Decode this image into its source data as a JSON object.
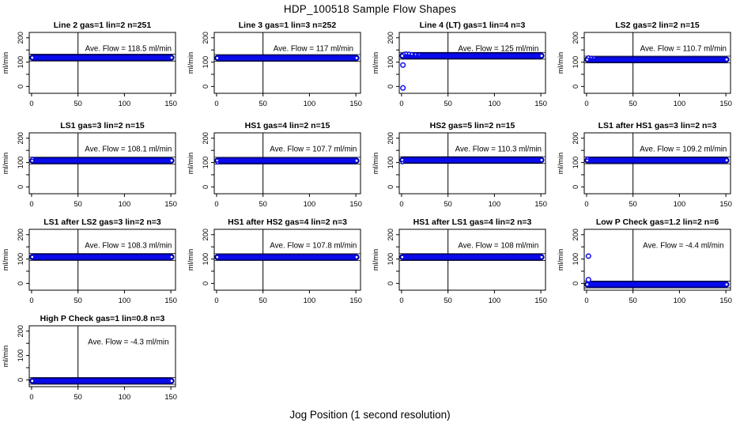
{
  "page": {
    "title": "HDP_100518  Sample Flow Shapes",
    "xlabel": "Jog Position (1 second resolution)",
    "ylabel": "ml/min"
  },
  "chart_data": {
    "type": "scatter",
    "title": "HDP_100518  Sample Flow Shapes",
    "xlabel": "Jog Position (1 second resolution)",
    "ylabel": "ml/min",
    "layout_hints": {
      "grid_rows": 4,
      "grid_cols": 4,
      "grid_on": false,
      "legend": "none",
      "vertical_reference_line_x": 50,
      "tolerance_line_offset_mlmin": 14
    },
    "xlim": [
      -2.5,
      155
    ],
    "ylim": [
      -28,
      222
    ],
    "x_ticks": [
      0,
      50,
      100,
      150
    ],
    "y_ticks": [
      0,
      50,
      100,
      150,
      200
    ],
    "y_tick_labels": [
      0,
      100,
      200
    ],
    "point_color": "#0a0aee",
    "point_edge_color": "#000088",
    "subplots": [
      {
        "row": 0,
        "col": 0,
        "title": "Line 2 gas=1 lin=2 n=251",
        "gas": 1,
        "lin": 2,
        "n": 251,
        "ave_flow": 118.5,
        "annotation": "Ave. Flow =  118.5  ml/min",
        "band": {
          "x0": 0,
          "x1": 151.5,
          "center": 118.5,
          "half": 11
        },
        "outliers": []
      },
      {
        "row": 0,
        "col": 1,
        "title": "Line 3 gas=1 lin=3 n=252",
        "gas": 1,
        "lin": 3,
        "n": 252,
        "ave_flow": 117,
        "annotation": "Ave. Flow =  117  ml/min",
        "band": {
          "x0": 0,
          "x1": 151.5,
          "center": 117,
          "half": 11
        },
        "outliers": []
      },
      {
        "row": 0,
        "col": 2,
        "title": "Line 4 (LT) gas=1 lin=4 n=3",
        "gas": 1,
        "lin": 4,
        "n": 3,
        "ave_flow": 125,
        "annotation": "Ave. Flow =  125  ml/min",
        "band": {
          "x0": 0,
          "x1": 151.5,
          "center": 126,
          "half": 11
        },
        "outliers": [
          [
            1.5,
            -6,
            2.8
          ],
          [
            1.5,
            88,
            2.8
          ],
          [
            3,
            134,
            1.8
          ],
          [
            5,
            136,
            1.8
          ],
          [
            8,
            135,
            1.8
          ],
          [
            11,
            133,
            1.8
          ],
          [
            15,
            132,
            1.6
          ],
          [
            19,
            131,
            1.4
          ]
        ]
      },
      {
        "row": 0,
        "col": 3,
        "title": "LS2 gas=2 lin=2 n=15",
        "gas": 2,
        "lin": 2,
        "n": 15,
        "ave_flow": 110.7,
        "annotation": "Ave. Flow =  110.7  ml/min",
        "band": {
          "x0": 0,
          "x1": 151.5,
          "center": 110.7,
          "half": 11
        },
        "outliers": [
          [
            2,
            120,
            1.8
          ],
          [
            5,
            119,
            1.5
          ],
          [
            8,
            118,
            1.4
          ]
        ]
      },
      {
        "row": 1,
        "col": 0,
        "title": "LS1 gas=3 lin=2 n=15",
        "gas": 3,
        "lin": 2,
        "n": 15,
        "ave_flow": 108.1,
        "annotation": "Ave. Flow =  108.1  ml/min",
        "band": {
          "x0": 0,
          "x1": 151.5,
          "center": 108.1,
          "half": 11
        },
        "outliers": [
          [
            1,
            117,
            1.5
          ]
        ]
      },
      {
        "row": 1,
        "col": 1,
        "title": "HS1 gas=4 lin=2 n=15",
        "gas": 4,
        "lin": 2,
        "n": 15,
        "ave_flow": 107.7,
        "annotation": "Ave. Flow =  107.7  ml/min",
        "band": {
          "x0": 0,
          "x1": 151.5,
          "center": 107.7,
          "half": 11
        },
        "outliers": [
          [
            1,
            99,
            1.5
          ]
        ]
      },
      {
        "row": 1,
        "col": 2,
        "title": "HS2 gas=5 lin=2 n=15",
        "gas": 5,
        "lin": 2,
        "n": 15,
        "ave_flow": 110.3,
        "annotation": "Ave. Flow =  110.3  ml/min",
        "band": {
          "x0": 0,
          "x1": 151.5,
          "center": 110.3,
          "half": 11
        },
        "outliers": [
          [
            1,
            100,
            1.6
          ]
        ]
      },
      {
        "row": 1,
        "col": 3,
        "title": "LS1 after HS1 gas=3 lin=2 n=3",
        "gas": 3,
        "lin": 2,
        "n": 3,
        "ave_flow": 109.2,
        "annotation": "Ave. Flow =  109.2  ml/min",
        "band": {
          "x0": 0,
          "x1": 151.5,
          "center": 109.2,
          "half": 11
        },
        "outliers": [
          [
            1,
            118,
            1.5
          ]
        ]
      },
      {
        "row": 2,
        "col": 0,
        "title": "LS1 after LS2 gas=3 lin=2 n=3",
        "gas": 3,
        "lin": 2,
        "n": 3,
        "ave_flow": 108.3,
        "annotation": "Ave. Flow =  108.3  ml/min",
        "band": {
          "x0": 0,
          "x1": 151.5,
          "center": 108.3,
          "half": 11
        },
        "outliers": []
      },
      {
        "row": 2,
        "col": 1,
        "title": "HS1 after HS2 gas=4 lin=2 n=3",
        "gas": 4,
        "lin": 2,
        "n": 3,
        "ave_flow": 107.8,
        "annotation": "Ave. Flow =  107.8  ml/min",
        "band": {
          "x0": 0,
          "x1": 151.5,
          "center": 107.8,
          "half": 11
        },
        "outliers": []
      },
      {
        "row": 2,
        "col": 2,
        "title": "HS1 after LS1 gas=4 lin=2 n=3",
        "gas": 4,
        "lin": 2,
        "n": 3,
        "ave_flow": 108,
        "annotation": "Ave. Flow =  108  ml/min",
        "band": {
          "x0": 0,
          "x1": 151.5,
          "center": 108,
          "half": 11
        },
        "outliers": []
      },
      {
        "row": 2,
        "col": 3,
        "title": "Low P Check gas=1.2 lin=2 n=6",
        "gas": 1.2,
        "lin": 2,
        "n": 6,
        "ave_flow": -4.4,
        "annotation": "Ave. Flow =  -4.4  ml/min",
        "band": {
          "x0": 0,
          "x1": 151.5,
          "center": -4.4,
          "half": 11
        },
        "outliers": [
          [
            2,
            112,
            2.8
          ],
          [
            2,
            15,
            2.8
          ]
        ]
      },
      {
        "row": 3,
        "col": 0,
        "title": "High P Check gas=1 lin=0.8 n=3",
        "gas": 1,
        "lin": 0.8,
        "n": 3,
        "ave_flow": -4.3,
        "annotation": "Ave. Flow =  -4.3  ml/min",
        "band": {
          "x0": 0,
          "x1": 151.5,
          "center": -4.3,
          "half": 11
        },
        "outliers": []
      }
    ]
  }
}
